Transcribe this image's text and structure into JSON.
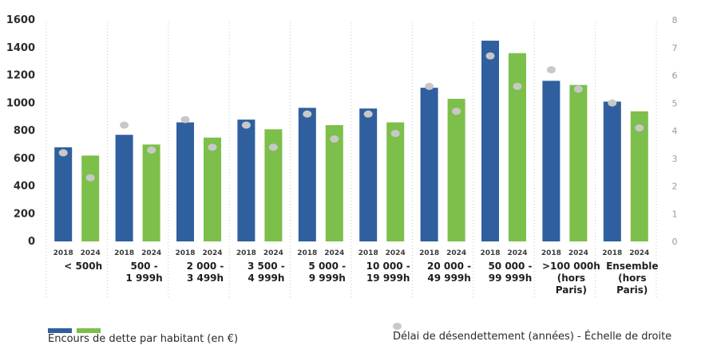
{
  "chart_data": {
    "type": "bar",
    "categories": [
      [
        "< 500h"
      ],
      [
        "500 -",
        "1 999h"
      ],
      [
        "2 000 -",
        "3 499h"
      ],
      [
        "3 500 -",
        "4 999h"
      ],
      [
        "5 000 -",
        "9 999h"
      ],
      [
        "10 000 -",
        "19 999h"
      ],
      [
        "20 000 -",
        "49 999h"
      ],
      [
        "50 000 -",
        "99 999h"
      ],
      [
        ">100 000h",
        "(hors",
        "Paris)"
      ],
      [
        "Ensemble",
        "(hors",
        "Paris)"
      ]
    ],
    "bar_years": [
      "2018",
      "2024"
    ],
    "series": [
      {
        "name": "Encours de dette par habitant (en €)",
        "axis": "left",
        "kind": "bar",
        "values_2018": [
          680,
          770,
          860,
          880,
          965,
          960,
          1110,
          1450,
          1160,
          1010
        ],
        "values_2024": [
          620,
          700,
          750,
          810,
          840,
          860,
          1030,
          1360,
          1130,
          940
        ]
      },
      {
        "name": "Délai de désendettement (années) - Échelle de droite",
        "axis": "right",
        "kind": "dot",
        "values_2018": [
          3.2,
          4.2,
          4.4,
          4.2,
          4.6,
          4.6,
          5.6,
          6.7,
          6.2,
          5.0
        ],
        "values_2024": [
          2.3,
          3.3,
          3.4,
          3.4,
          3.7,
          3.9,
          4.7,
          5.6,
          5.5,
          4.1
        ]
      }
    ],
    "y_left": {
      "ticks": [
        0,
        200,
        400,
        600,
        800,
        1000,
        1200,
        1400,
        1600
      ],
      "ylim": [
        0,
        1600
      ]
    },
    "y_right": {
      "ticks": [
        0,
        1,
        2,
        3,
        4,
        5,
        6,
        7,
        8
      ],
      "ylim": [
        0,
        8
      ]
    },
    "colors": {
      "bar_2018": "#2f5f9e",
      "bar_2024": "#7cbf4a",
      "dot": "#c8c8c8",
      "grid": "#c5c5c5"
    },
    "legend": {
      "bars_label": "Encours de dette par habitant (en €)",
      "dot_label": "Délai de désendettement (années) - Échelle de droite"
    },
    "grid": "vertical dotted separators"
  }
}
